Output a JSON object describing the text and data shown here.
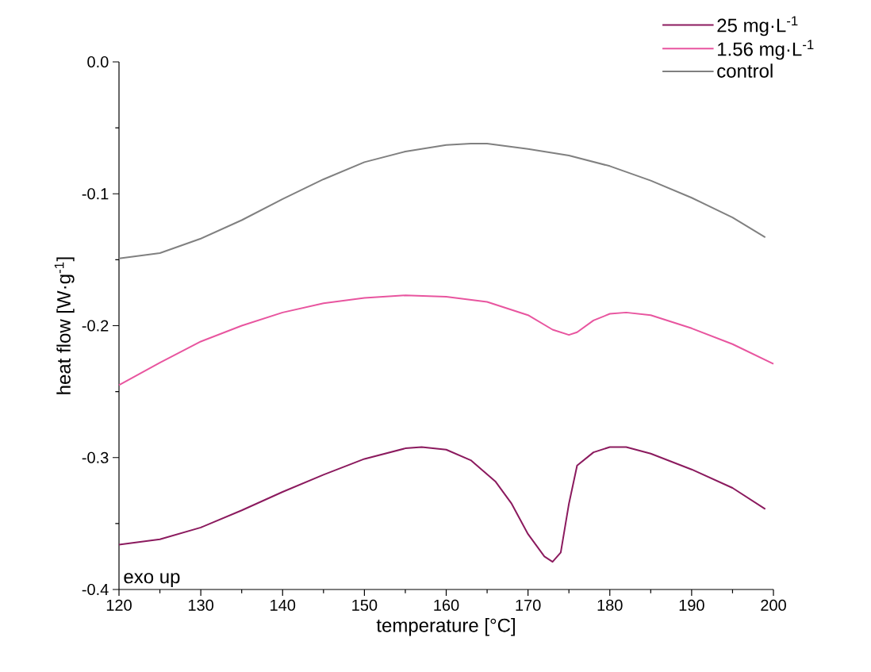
{
  "chart_data": {
    "type": "line",
    "xlabel": "temperature [°C]",
    "ylabel": "heat flow [W·g$^{-1}$]",
    "xlim": [
      120,
      200
    ],
    "ylim": [
      -0.4,
      0.0
    ],
    "xticks": [
      120,
      130,
      140,
      150,
      160,
      170,
      180,
      190,
      200
    ],
    "yticks": [
      -0.4,
      -0.3,
      -0.2,
      -0.1,
      {
        "value": 0,
        "label": "0.0"
      }
    ],
    "grid": false,
    "legend": "top right",
    "marker": "none",
    "line_style": "solid",
    "annotations": [
      "exo up"
    ],
    "series": [
      {
        "name": "25 mg·L$^{-1}$",
        "color": "#8b1a5e",
        "x": [
          120,
          125,
          130,
          135,
          140,
          145,
          150,
          155,
          157,
          160,
          163,
          166,
          168,
          170,
          172,
          173,
          174,
          175,
          176,
          178,
          180,
          182,
          185,
          190,
          195,
          199
        ],
        "values": [
          -0.366,
          -0.362,
          -0.353,
          -0.34,
          -0.326,
          -0.313,
          -0.301,
          -0.293,
          -0.292,
          -0.294,
          -0.302,
          -0.318,
          -0.335,
          -0.358,
          -0.375,
          -0.379,
          -0.372,
          -0.335,
          -0.306,
          -0.296,
          -0.292,
          -0.292,
          -0.297,
          -0.309,
          -0.323,
          -0.339
        ]
      },
      {
        "name": "1.56 mg·L$^{-1}$",
        "color": "#e8559f",
        "x": [
          120,
          125,
          130,
          135,
          140,
          145,
          150,
          155,
          160,
          165,
          170,
          173,
          175,
          176,
          178,
          180,
          182,
          185,
          190,
          195,
          200
        ],
        "values": [
          -0.245,
          -0.228,
          -0.212,
          -0.2,
          -0.19,
          -0.183,
          -0.179,
          -0.177,
          -0.178,
          -0.182,
          -0.192,
          -0.203,
          -0.207,
          -0.205,
          -0.196,
          -0.191,
          -0.19,
          -0.192,
          -0.202,
          -0.214,
          -0.229
        ]
      },
      {
        "name": "control",
        "color": "#808080",
        "x": [
          120,
          125,
          130,
          135,
          140,
          145,
          150,
          155,
          160,
          163,
          165,
          170,
          175,
          180,
          185,
          190,
          195,
          199
        ],
        "values": [
          -0.149,
          -0.145,
          -0.134,
          -0.12,
          -0.104,
          -0.089,
          -0.076,
          -0.068,
          -0.063,
          -0.062,
          -0.062,
          -0.066,
          -0.071,
          -0.079,
          -0.09,
          -0.103,
          -0.118,
          -0.133
        ]
      }
    ]
  }
}
